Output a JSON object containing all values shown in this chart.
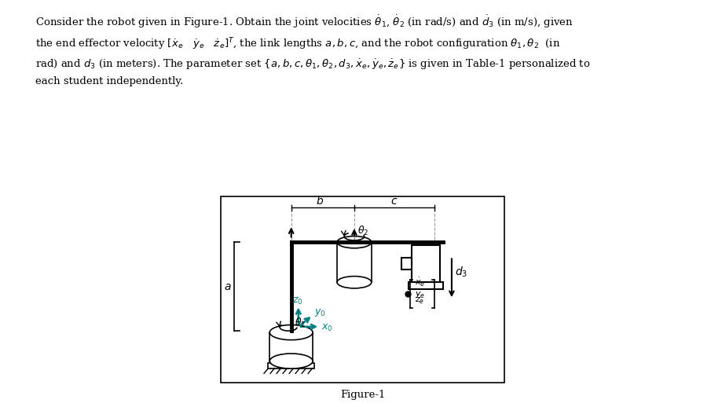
{
  "title_text": "Consider the robot given in Figure-1. Obtain the joint velocities $\\dot{\\theta}_1$, $\\dot{\\theta}_2$ (in rad/s) and $\\dot{d}_3$ (in m/s), given",
  "line2_text": "the end effector velocity $[\\dot{x}_e \\quad \\dot{y}_e \\quad \\dot{z}_e]^T$, the link lengths $a, b, c$, and the robot configuration $\\theta_1, \\theta_2$  (in",
  "line3_text": "rad) and $d_3$ (in meters). The parameter set $\\{a, b, c, \\theta_1, \\theta_2, d_3, \\dot{x}_e, \\dot{y}_e, \\dot{z}_e\\}$ is given in Table-1 personalized to",
  "line4_text": "each student independently.",
  "figure_label": "Figure-1",
  "background_color": "#ffffff",
  "box_color": "#000000",
  "teal_color": "#008080",
  "gray_color": "#555555"
}
